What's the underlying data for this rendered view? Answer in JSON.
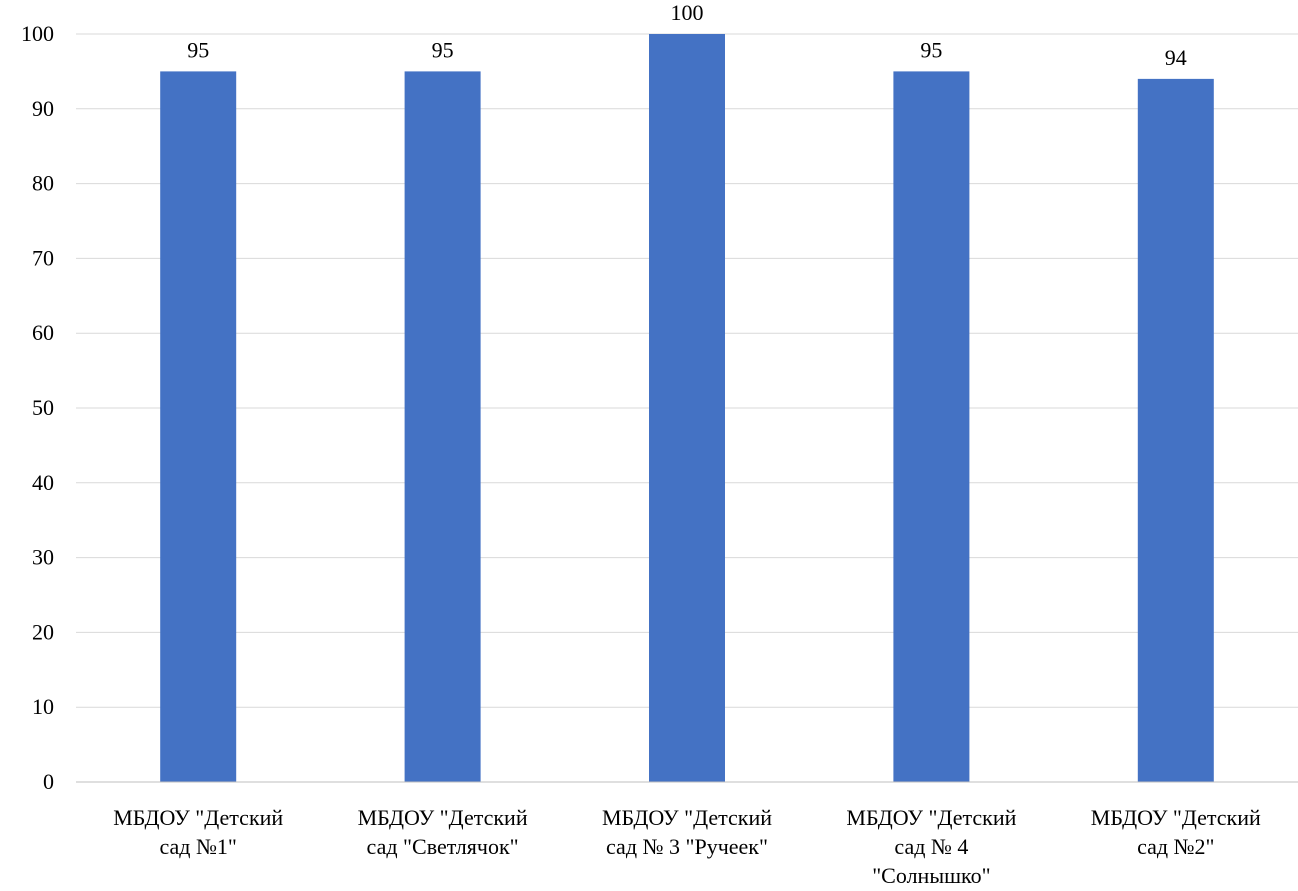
{
  "chart_data": {
    "type": "bar",
    "title": "",
    "xlabel": "",
    "ylabel": "",
    "categories": [
      "МБДОУ \"Детский сад №1\"",
      "МБДОУ \"Детский сад \"Светлячок\"",
      "МБДОУ \"Детский сад № 3  \"Ручеек\"",
      "МБДОУ \"Детский сад № 4 \"Солнышко\"",
      "МБДОУ \"Детский сад №2\""
    ],
    "category_lines": [
      [
        "МБДОУ \"Детский",
        "сад №1\""
      ],
      [
        "МБДОУ \"Детский",
        "сад \"Светлячок\""
      ],
      [
        "МБДОУ \"Детский",
        "сад № 3  \"Ручеек\""
      ],
      [
        "МБДОУ \"Детский",
        "сад № 4",
        "\"Солнышко\""
      ],
      [
        "МБДОУ \"Детский",
        "сад №2\""
      ]
    ],
    "values": [
      95,
      95,
      100,
      95,
      94
    ],
    "ylim": [
      0,
      100
    ],
    "yticks": [
      0,
      10,
      20,
      30,
      40,
      50,
      60,
      70,
      80,
      90,
      100
    ],
    "grid": true,
    "legend": "none",
    "colors": {
      "bar": "#4472C4",
      "grid": "#D9D9D9",
      "axis": "#BFBFBF",
      "text": "#000000"
    }
  }
}
